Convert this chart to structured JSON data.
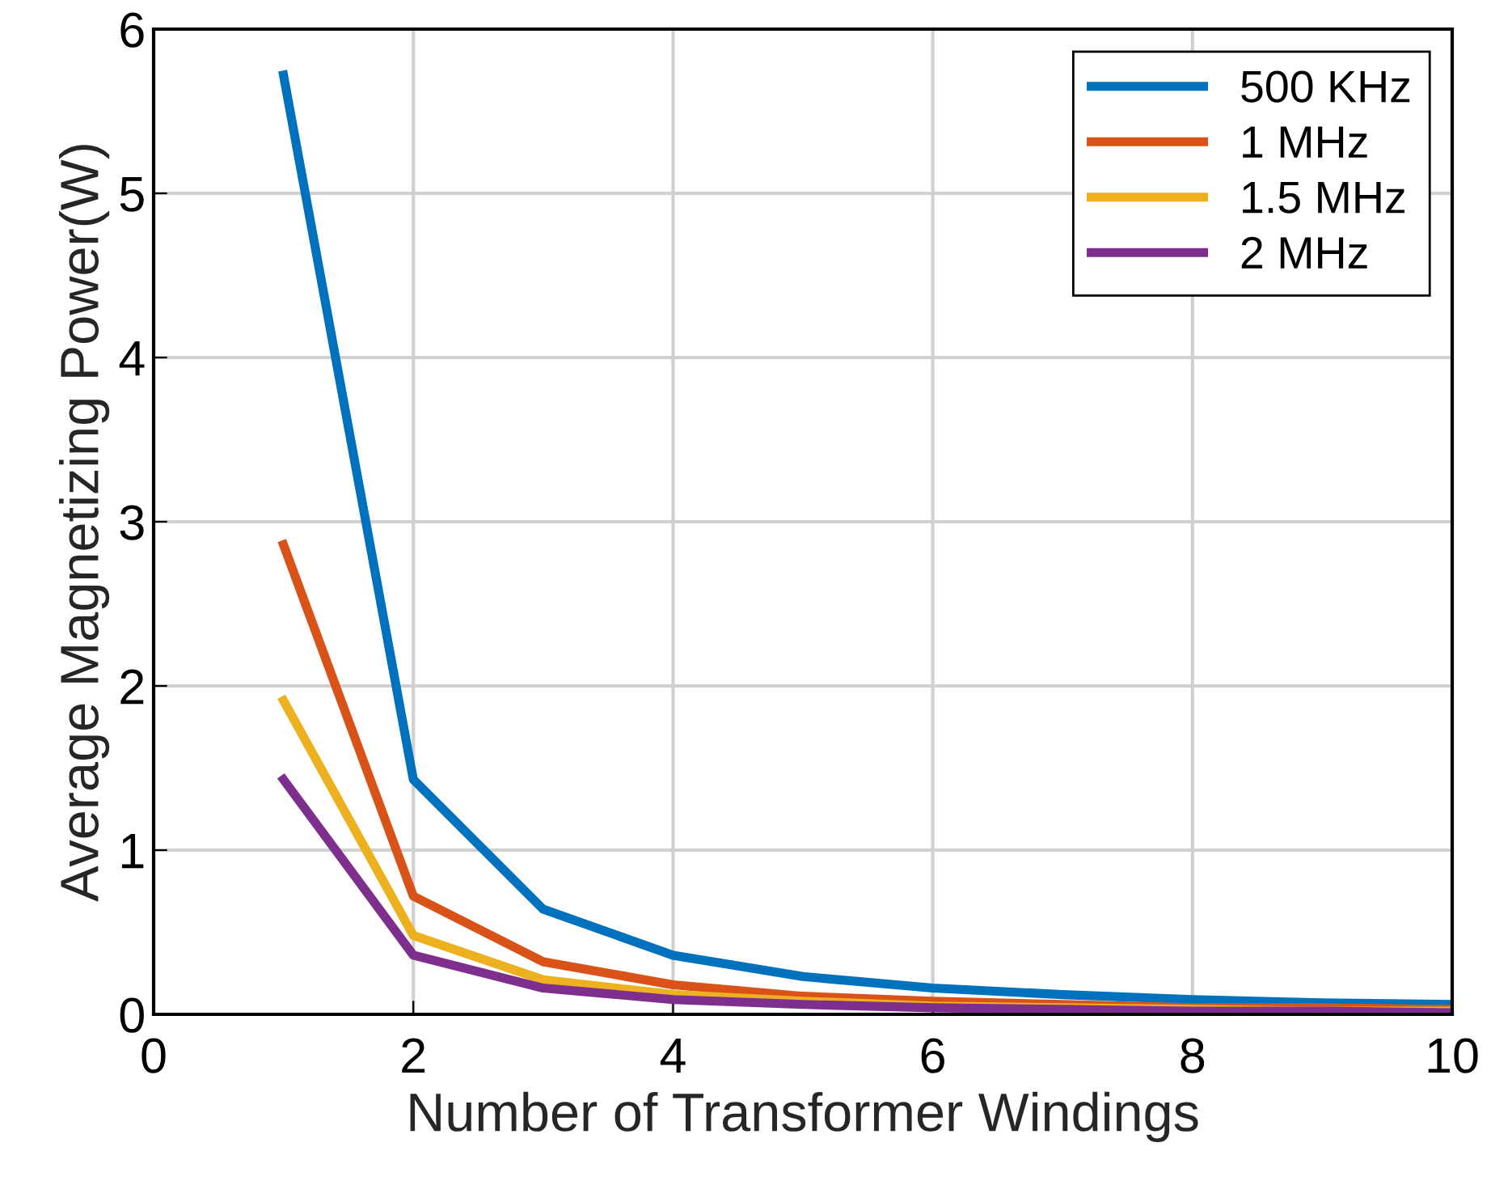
{
  "chart_data": {
    "type": "line",
    "xlabel": "Number of Transformer Windings",
    "ylabel": "Average Magnetizing Power(W)",
    "x": [
      1,
      2,
      3,
      4,
      5,
      6,
      7,
      8,
      9,
      10
    ],
    "series": [
      {
        "name": "500 KHz",
        "color": "#0072bd",
        "values": [
          5.72,
          1.43,
          0.64,
          0.36,
          0.23,
          0.16,
          0.12,
          0.09,
          0.07,
          0.06
        ]
      },
      {
        "name": "1 MHz",
        "color": "#d95319",
        "values": [
          2.86,
          0.72,
          0.32,
          0.18,
          0.11,
          0.08,
          0.06,
          0.04,
          0.04,
          0.03
        ]
      },
      {
        "name": "1.5 MHz",
        "color": "#edb120",
        "values": [
          1.91,
          0.48,
          0.21,
          0.12,
          0.08,
          0.05,
          0.04,
          0.03,
          0.02,
          0.02
        ]
      },
      {
        "name": "2 MHz",
        "color": "#7e2f8e",
        "values": [
          1.43,
          0.36,
          0.16,
          0.09,
          0.06,
          0.04,
          0.03,
          0.02,
          0.02,
          0.01
        ]
      }
    ],
    "xlim": [
      0,
      10
    ],
    "xticks": [
      0,
      2,
      4,
      6,
      8,
      10
    ],
    "ylim": [
      0,
      6
    ],
    "yticks": [
      0,
      1,
      2,
      3,
      4,
      5,
      6
    ],
    "grid": true,
    "legend": "top right",
    "line_style": "solid"
  }
}
